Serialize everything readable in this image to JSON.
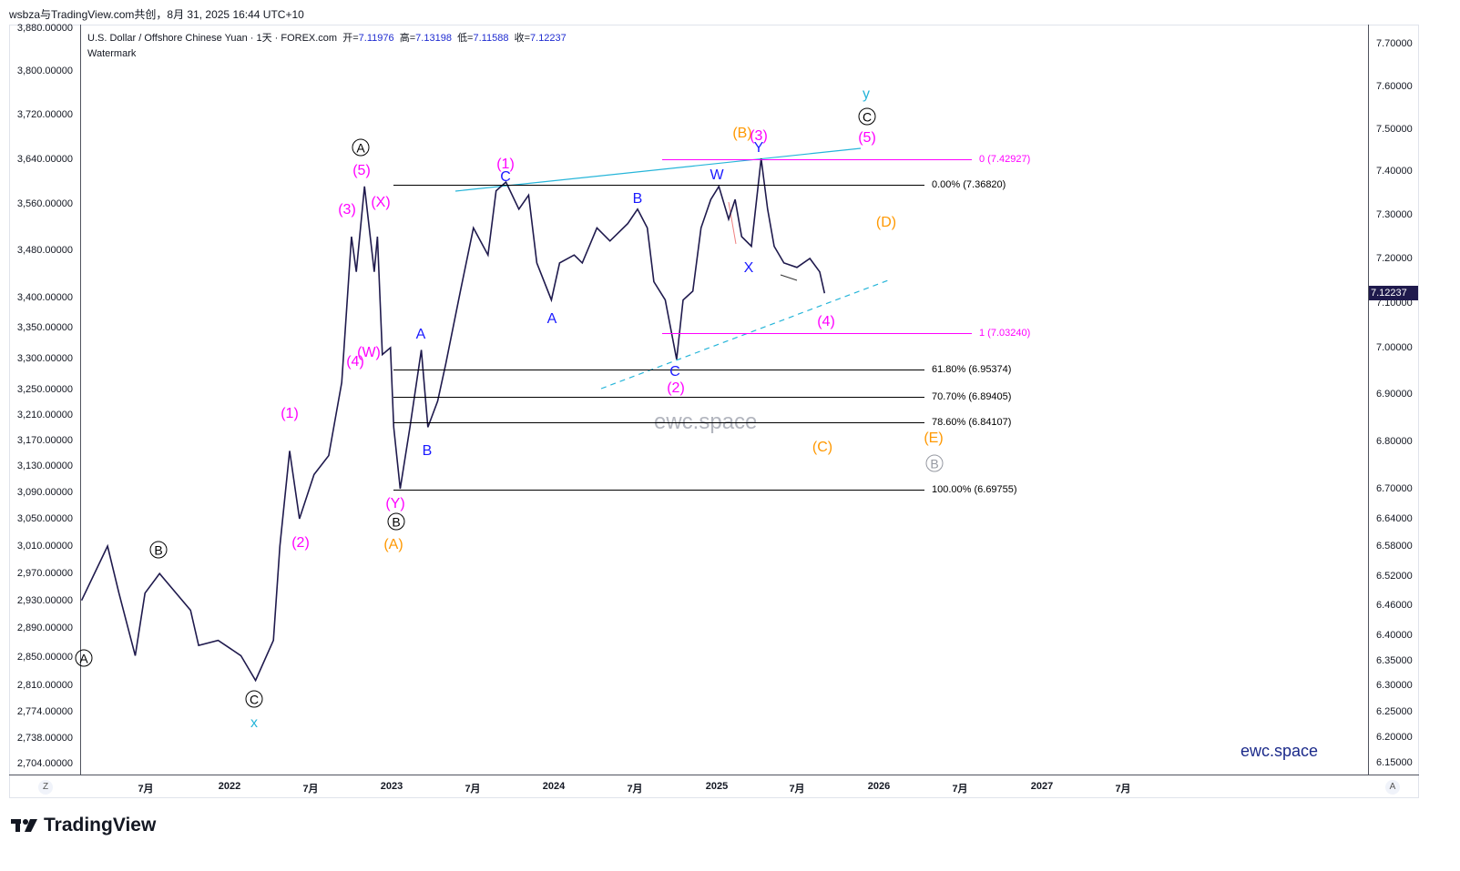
{
  "top_caption": "wsbza与TradingView.com共创，8月 31, 2025 16:44 UTC+10",
  "legend": {
    "symbol": "U.S. Dollar / Offshore Chinese Yuan · 1天 · FOREX.com",
    "open_label": "开=",
    "open": "7.11976",
    "high_label": "高=",
    "high": "7.13198",
    "low_label": "低=",
    "low": "7.11588",
    "close_label": "收=",
    "close": "7.12237",
    "indicator": "Watermark"
  },
  "watermark": "ewc.space",
  "brand_watermark": "ewc.space",
  "last_price": "7.12237",
  "colors": {
    "price_line": "#1f1a4d",
    "magenta": "#ff00ff",
    "blue": "#1a1aff",
    "orange": "#ff9800",
    "cyan": "#26b5d9",
    "black": "#000000",
    "gray": "#9598a1"
  },
  "chart_data": {
    "type": "line",
    "title": "U.S. Dollar / Offshore Chinese Yuan · 1天 · FOREX.com",
    "xlabel": "",
    "ylabel": "",
    "x_unit": "decimal year",
    "xlim": [
      2021.08,
      2027.6
    ],
    "ylim": [
      6.13,
      7.74
    ],
    "right_axis_ticks": [
      7.7,
      7.6,
      7.5,
      7.4,
      7.3,
      7.2,
      7.1,
      7.0,
      6.9,
      6.8,
      6.7,
      6.64,
      6.58,
      6.52,
      6.46,
      6.4,
      6.35,
      6.3,
      6.25,
      6.2,
      6.15
    ],
    "right_axis_labels": [
      "7.70000",
      "7.60000",
      "7.50000",
      "7.40000",
      "7.30000",
      "7.20000",
      "7.10000",
      "7.00000",
      "6.90000",
      "6.80000",
      "6.70000",
      "6.64000",
      "6.58000",
      "6.52000",
      "6.46000",
      "6.40000",
      "6.35000",
      "6.30000",
      "6.25000",
      "6.20000",
      "6.15000"
    ],
    "left_axis_labels": [
      "3,880.00000",
      "3,800.00000",
      "3,720.00000",
      "3,640.00000",
      "3,560.00000",
      "3,480.00000",
      "3,400.00000",
      "3,350.00000",
      "3,300.00000",
      "3,250.00000",
      "3,210.00000",
      "3,170.00000",
      "3,130.00000",
      "3,090.00000",
      "3,050.00000",
      "3,010.00000",
      "2,970.00000",
      "2,930.00000",
      "2,890.00000",
      "2,850.00000",
      "2,810.00000",
      "2,774.00000",
      "2,738.00000",
      "2,704.00000"
    ],
    "time_axis_labels": [
      "7月",
      "2022",
      "7月",
      "2023",
      "7月",
      "2024",
      "7月",
      "2025",
      "7月",
      "2026",
      "7月",
      "2027",
      "7月"
    ],
    "grid": false,
    "series": [
      {
        "name": "USDCNH",
        "x": [
          2021.09,
          2021.25,
          2021.32,
          2021.42,
          2021.48,
          2021.57,
          2021.76,
          2021.81,
          2021.93,
          2022.07,
          2022.16,
          2022.27,
          2022.31,
          2022.37,
          2022.43,
          2022.52,
          2022.61,
          2022.69,
          2022.75,
          2022.78,
          2022.83,
          2022.89,
          2022.91,
          2022.94,
          2022.99,
          2023.01,
          2023.05,
          2023.11,
          2023.18,
          2023.22,
          2023.28,
          2023.33,
          2023.42,
          2023.5,
          2023.59,
          2023.64,
          2023.7,
          2023.78,
          2023.84,
          2023.89,
          2023.98,
          2024.03,
          2024.12,
          2024.17,
          2024.26,
          2024.34,
          2024.45,
          2024.51,
          2024.57,
          2024.61,
          2024.68,
          2024.75,
          2024.79,
          2024.85,
          2024.9,
          2024.96,
          2025.01,
          2025.07,
          2025.11,
          2025.15,
          2025.21,
          2025.27,
          2025.31,
          2025.35,
          2025.41,
          2025.49,
          2025.57,
          2025.63,
          2025.66
        ],
        "y": [
          6.47,
          6.58,
          6.485,
          6.36,
          6.485,
          6.525,
          6.45,
          6.38,
          6.39,
          6.36,
          6.31,
          6.39,
          6.58,
          6.78,
          6.64,
          6.73,
          6.77,
          6.925,
          7.25,
          7.17,
          7.365,
          7.17,
          7.25,
          6.985,
          7.0,
          6.83,
          6.7,
          6.83,
          6.995,
          6.83,
          6.885,
          6.965,
          7.127,
          7.27,
          7.208,
          7.355,
          7.375,
          7.313,
          7.345,
          7.19,
          7.107,
          7.19,
          7.208,
          7.19,
          7.27,
          7.24,
          7.28,
          7.313,
          7.27,
          7.148,
          7.107,
          6.975,
          7.107,
          7.127,
          7.27,
          7.335,
          7.365,
          7.29,
          7.335,
          7.25,
          7.228,
          7.43,
          7.313,
          7.228,
          7.19,
          7.18,
          7.2,
          7.17,
          7.122
        ]
      }
    ],
    "fib_levels": [
      {
        "label": "0.00% (7.36820)",
        "price": 7.3682,
        "color": "#000000"
      },
      {
        "label": "61.80% (6.95374)",
        "price": 6.95374,
        "color": "#000000"
      },
      {
        "label": "70.70% (6.89405)",
        "price": 6.89405,
        "color": "#000000"
      },
      {
        "label": "78.60% (6.84107)",
        "price": 6.84107,
        "color": "#000000"
      },
      {
        "label": "100.00% (6.69755)",
        "price": 6.69755,
        "color": "#000000"
      },
      {
        "label": "0 (7.42927)",
        "price": 7.42927,
        "color": "#ff00ff"
      },
      {
        "label": "1 (7.03240)",
        "price": 7.0324,
        "color": "#ff00ff"
      }
    ],
    "wave_labels": [
      {
        "text": "A",
        "color": "#000000",
        "circled": true
      },
      {
        "text": "B",
        "color": "#000000",
        "circled": true
      },
      {
        "text": "C",
        "color": "#000000",
        "circled": true
      },
      {
        "text": "x",
        "color": "#26b5d9",
        "circled": false
      },
      {
        "text": "(1)",
        "color": "#ff00ff",
        "circled": false
      },
      {
        "text": "(2)",
        "color": "#ff00ff",
        "circled": false
      },
      {
        "text": "(3)",
        "color": "#ff00ff",
        "circled": false
      },
      {
        "text": "(4)",
        "color": "#ff00ff",
        "circled": false
      },
      {
        "text": "(W)",
        "color": "#ff00ff",
        "circled": false
      },
      {
        "text": "(5)",
        "color": "#ff00ff",
        "circled": false
      },
      {
        "text": "A",
        "color": "#000000",
        "circled": true
      },
      {
        "text": "(X)",
        "color": "#ff00ff",
        "circled": false
      },
      {
        "text": "(Y)",
        "color": "#ff00ff",
        "circled": false
      },
      {
        "text": "B",
        "color": "#000000",
        "circled": true
      },
      {
        "text": "(A)",
        "color": "#ff9800",
        "circled": false
      },
      {
        "text": "A",
        "color": "#1a1aff",
        "circled": false
      },
      {
        "text": "B",
        "color": "#1a1aff",
        "circled": false
      },
      {
        "text": "(1)",
        "color": "#ff00ff",
        "circled": false
      },
      {
        "text": "C",
        "color": "#1a1aff",
        "circled": false
      },
      {
        "text": "A",
        "color": "#1a1aff",
        "circled": false
      },
      {
        "text": "B",
        "color": "#1a1aff",
        "circled": false
      },
      {
        "text": "C",
        "color": "#1a1aff",
        "circled": false
      },
      {
        "text": "(2)",
        "color": "#ff00ff",
        "circled": false
      },
      {
        "text": "W",
        "color": "#1a1aff",
        "circled": false
      },
      {
        "text": "X",
        "color": "#1a1aff",
        "circled": false
      },
      {
        "text": "(B)",
        "color": "#ff9800",
        "circled": false
      },
      {
        "text": "(3)",
        "color": "#ff00ff",
        "circled": false
      },
      {
        "text": "Y",
        "color": "#1a1aff",
        "circled": false
      },
      {
        "text": "y",
        "color": "#26b5d9",
        "circled": false
      },
      {
        "text": "C",
        "color": "#000000",
        "circled": true
      },
      {
        "text": "(5)",
        "color": "#ff00ff",
        "circled": false
      },
      {
        "text": "(D)",
        "color": "#ff9800",
        "circled": false
      },
      {
        "text": "(4)",
        "color": "#ff00ff",
        "circled": false
      },
      {
        "text": "(C)",
        "color": "#ff9800",
        "circled": false
      },
      {
        "text": "(E)",
        "color": "#ff9800",
        "circled": false
      },
      {
        "text": "B",
        "color": "#9598a1",
        "circled": true
      }
    ]
  },
  "corner_left": "Z",
  "corner_right": "A",
  "logo_text": "TradingView"
}
